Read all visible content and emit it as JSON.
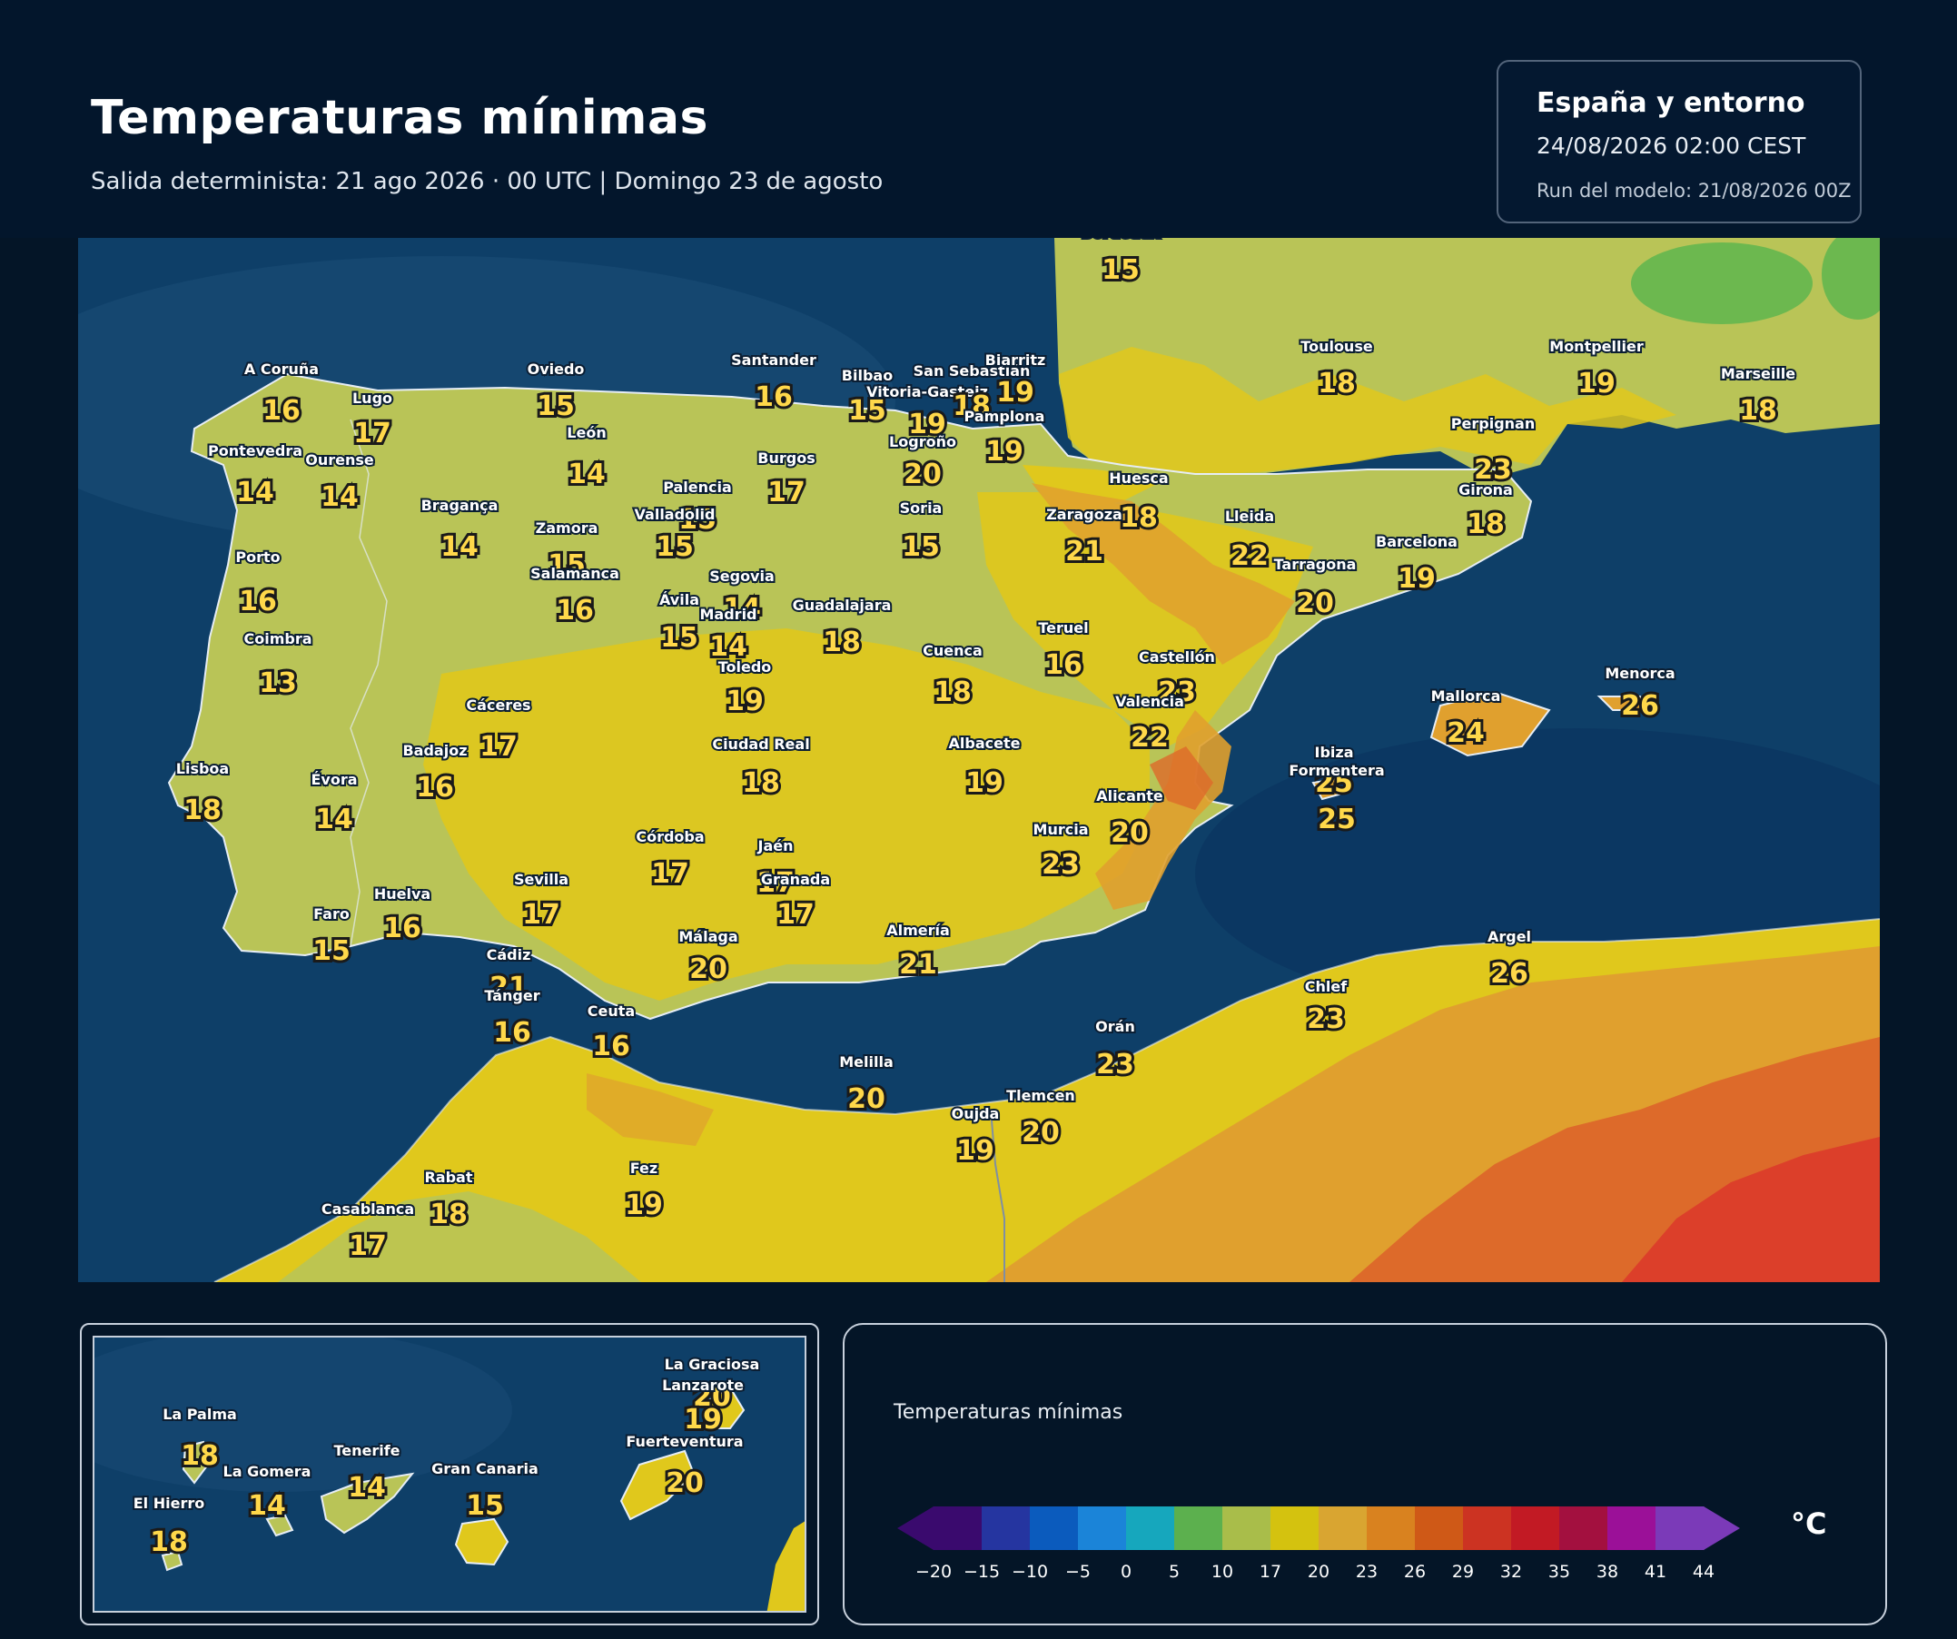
{
  "header": {
    "title": "Temperaturas mínimas",
    "subtitle": "Salida determinista: 21 ago 2026 · 00 UTC  |  Domingo 23 de agosto"
  },
  "info": {
    "region": "España y entorno",
    "valid": "24/08/2026  02:00 CEST",
    "run": "Run del modelo: 21/08/2026 00Z"
  },
  "colors": {
    "sea": "#0e3f68",
    "land_cool": "#b9c457",
    "land_warm": "#e0c81c",
    "land_hot": "#e0a02e",
    "land_very_hot": "#dd6a2a",
    "label_value": "#ffd84a"
  },
  "places": [
    {
      "name": "Bordeaux",
      "value": "15"
    },
    {
      "name": "A Coruña",
      "value": "16"
    },
    {
      "name": "Lugo",
      "value": "17"
    },
    {
      "name": "Oviedo",
      "value": "15"
    },
    {
      "name": "Santander",
      "value": "16"
    },
    {
      "name": "Bilbao",
      "value": "15"
    },
    {
      "name": "Vitoria-Gasteiz",
      "value": "19"
    },
    {
      "name": "San Sebastián",
      "value": "18"
    },
    {
      "name": "Biarritz",
      "value": "19"
    },
    {
      "name": "Pamplona",
      "value": "19"
    },
    {
      "name": "Logroño",
      "value": "20"
    },
    {
      "name": "Toulouse",
      "value": "18"
    },
    {
      "name": "Montpellier",
      "value": "19"
    },
    {
      "name": "Marseille",
      "value": "18"
    },
    {
      "name": "Perpignan",
      "value": "23"
    },
    {
      "name": "Girona",
      "value": "18"
    },
    {
      "name": "Pontevedra",
      "value": "14"
    },
    {
      "name": "Ourense",
      "value": "14"
    },
    {
      "name": "León",
      "value": "14"
    },
    {
      "name": "Burgos",
      "value": "17"
    },
    {
      "name": "Palencia",
      "value": "15"
    },
    {
      "name": "Valladolid",
      "value": "15"
    },
    {
      "name": "Bragança",
      "value": "14"
    },
    {
      "name": "Zamora",
      "value": "15"
    },
    {
      "name": "Soria",
      "value": "15"
    },
    {
      "name": "Huesca",
      "value": "18"
    },
    {
      "name": "Zaragoza",
      "value": "21"
    },
    {
      "name": "Lleida",
      "value": "22"
    },
    {
      "name": "Barcelona",
      "value": "19"
    },
    {
      "name": "Tarragona",
      "value": "20"
    },
    {
      "name": "Porto",
      "value": "16"
    },
    {
      "name": "Salamanca",
      "value": "16"
    },
    {
      "name": "Segovia",
      "value": "14"
    },
    {
      "name": "Ávila",
      "value": "15"
    },
    {
      "name": "Madrid",
      "value": "14"
    },
    {
      "name": "Guadalajara",
      "value": "18"
    },
    {
      "name": "Coimbra",
      "value": "13"
    },
    {
      "name": "Teruel",
      "value": "16"
    },
    {
      "name": "Castellón",
      "value": "23"
    },
    {
      "name": "Cuenca",
      "value": "18"
    },
    {
      "name": "Toledo",
      "value": "19"
    },
    {
      "name": "Cáceres",
      "value": "17"
    },
    {
      "name": "Valencia",
      "value": "22"
    },
    {
      "name": "Menorca",
      "value": "26"
    },
    {
      "name": "Mallorca",
      "value": "24"
    },
    {
      "name": "Badajoz",
      "value": "16"
    },
    {
      "name": "Lisboa",
      "value": "18"
    },
    {
      "name": "Évora",
      "value": "14"
    },
    {
      "name": "Ciudad Real",
      "value": "18"
    },
    {
      "name": "Albacete",
      "value": "19"
    },
    {
      "name": "Ibiza",
      "value": "25"
    },
    {
      "name": "Formentera",
      "value": "25"
    },
    {
      "name": "Alicante",
      "value": "20"
    },
    {
      "name": "Murcia",
      "value": "23"
    },
    {
      "name": "Córdoba",
      "value": "17"
    },
    {
      "name": "Jaén",
      "value": "17"
    },
    {
      "name": "Granada",
      "value": "17"
    },
    {
      "name": "Huelva",
      "value": "16"
    },
    {
      "name": "Sevilla",
      "value": "17"
    },
    {
      "name": "Faro",
      "value": "15"
    },
    {
      "name": "Almería",
      "value": "21"
    },
    {
      "name": "Málaga",
      "value": "20"
    },
    {
      "name": "Cádiz",
      "value": "21"
    },
    {
      "name": "Argel",
      "value": "26"
    },
    {
      "name": "Chlef",
      "value": "23"
    },
    {
      "name": "Tánger",
      "value": "16"
    },
    {
      "name": "Ceuta",
      "value": "16"
    },
    {
      "name": "Orán",
      "value": "23"
    },
    {
      "name": "Melilla",
      "value": "20"
    },
    {
      "name": "Tlemcen",
      "value": "20"
    },
    {
      "name": "Oujda",
      "value": "19"
    },
    {
      "name": "Rabat",
      "value": "18"
    },
    {
      "name": "Fez",
      "value": "19"
    },
    {
      "name": "Casablanca",
      "value": "17"
    }
  ],
  "canarias": [
    {
      "name": "La Graciosa",
      "value": "20"
    },
    {
      "name": "Lanzarote",
      "value": "19"
    },
    {
      "name": "La Palma",
      "value": "18"
    },
    {
      "name": "Tenerife",
      "value": "14"
    },
    {
      "name": "Fuerteventura",
      "value": "20"
    },
    {
      "name": "La Gomera",
      "value": "14"
    },
    {
      "name": "Gran Canaria",
      "value": "15"
    },
    {
      "name": "El Hierro",
      "value": "18"
    }
  ],
  "legend": {
    "title": "Temperaturas mínimas",
    "unit": "°C",
    "ticks": [
      "−20",
      "−15",
      "−10",
      "−5",
      "0",
      "5",
      "10",
      "17",
      "20",
      "23",
      "26",
      "29",
      "32",
      "35",
      "38",
      "41",
      "44"
    ],
    "colors": [
      "#3a0a6e",
      "#2535a0",
      "#0b5bbd",
      "#1b84d8",
      "#16a7bd",
      "#5cb04e",
      "#a9bd4a",
      "#d4c20f",
      "#d9a531",
      "#d9821f",
      "#cf5917",
      "#cc3322",
      "#c21a24",
      "#a3103f",
      "#9b1098",
      "#7b3ab8"
    ],
    "low_color": "#3a0a6e",
    "high_color": "#7b3ab8"
  }
}
